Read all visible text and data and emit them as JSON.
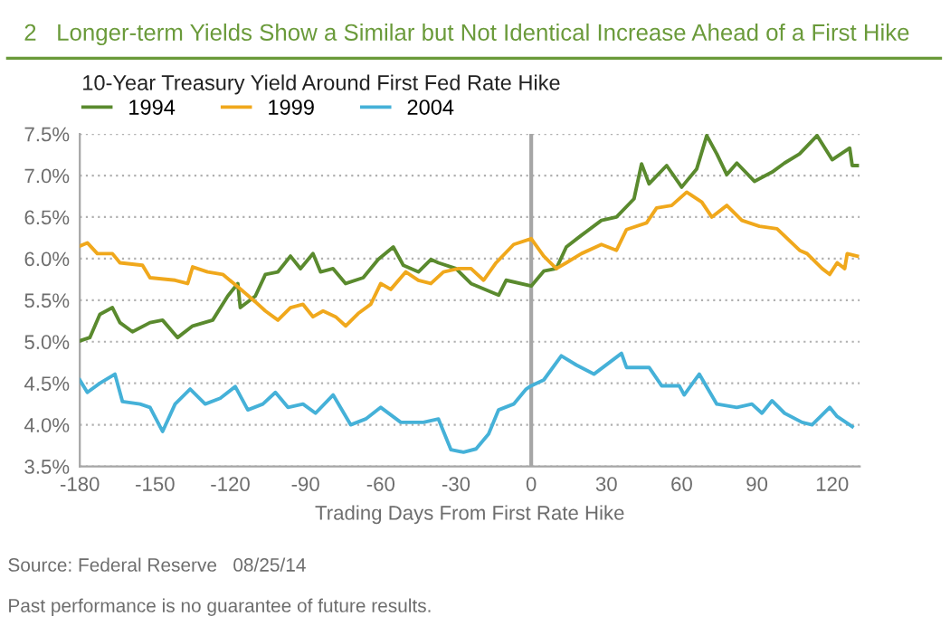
{
  "chart_data": {
    "type": "line",
    "title": "2   Longer-term Yields Show a Similar but Not Identical Increase Ahead of a First Hike",
    "subtitle": "10-Year Treasury Yield Around First Fed Rate Hike",
    "xlabel": "Trading Days From First Rate Hike",
    "annotations": [
      "Source: Federal Reserve   08/25/14",
      "Past performance is no guarantee of future results."
    ],
    "series": [
      {
        "name": "1994",
        "color": "#5a8a2e",
        "x": [
          -180,
          -176,
          -172,
          -167,
          -164,
          -159,
          -152,
          -147,
          -141,
          -135,
          -127,
          -121,
          -117,
          -116,
          -110,
          -106,
          -101,
          -96,
          -92,
          -87,
          -84,
          -79,
          -74,
          -67,
          -61,
          -55,
          -51,
          -45,
          -40,
          -37,
          -30,
          -24,
          -13,
          -10,
          0,
          5,
          10,
          14,
          20,
          28,
          34,
          41,
          44,
          47,
          54,
          60,
          66,
          70,
          74,
          78,
          82,
          89,
          96,
          101,
          107,
          114,
          120,
          127,
          128,
          130
        ],
        "values": [
          5.01,
          5.05,
          5.33,
          5.41,
          5.23,
          5.12,
          5.23,
          5.26,
          5.05,
          5.19,
          5.26,
          5.55,
          5.7,
          5.41,
          5.55,
          5.81,
          5.84,
          6.03,
          5.88,
          6.06,
          5.84,
          5.88,
          5.7,
          5.77,
          5.99,
          6.14,
          5.92,
          5.84,
          5.99,
          5.95,
          5.88,
          5.7,
          5.56,
          5.74,
          5.67,
          5.85,
          5.88,
          6.14,
          6.28,
          6.46,
          6.5,
          6.72,
          7.14,
          6.9,
          7.12,
          6.86,
          7.08,
          7.48,
          7.26,
          7.01,
          7.15,
          6.93,
          7.04,
          7.15,
          7.26,
          7.48,
          7.19,
          7.33,
          7.12,
          7.12
        ]
      },
      {
        "name": "1999",
        "color": "#f0a81c",
        "x": [
          -180,
          -177,
          -173,
          -167,
          -164,
          -155,
          -152,
          -142,
          -137,
          -135,
          -129,
          -123,
          -117,
          -110,
          -106,
          -101,
          -96,
          -91,
          -87,
          -83,
          -78,
          -74,
          -69,
          -64,
          -60,
          -56,
          -50,
          -45,
          -40,
          -35,
          -29,
          -24,
          -19,
          -14,
          -7,
          0,
          5,
          10,
          14,
          20,
          28,
          34,
          38,
          46,
          50,
          56,
          62,
          68,
          72,
          78,
          84,
          91,
          98,
          107,
          110,
          116,
          119,
          122,
          125,
          126,
          130
        ],
        "values": [
          6.15,
          6.19,
          6.06,
          6.06,
          5.95,
          5.92,
          5.77,
          5.74,
          5.7,
          5.9,
          5.84,
          5.81,
          5.66,
          5.48,
          5.37,
          5.26,
          5.41,
          5.45,
          5.3,
          5.37,
          5.3,
          5.19,
          5.34,
          5.45,
          5.7,
          5.63,
          5.84,
          5.74,
          5.7,
          5.84,
          5.88,
          5.88,
          5.74,
          5.95,
          6.17,
          6.24,
          6.03,
          5.88,
          5.95,
          6.06,
          6.17,
          6.1,
          6.35,
          6.43,
          6.61,
          6.64,
          6.8,
          6.68,
          6.5,
          6.64,
          6.46,
          6.39,
          6.36,
          6.1,
          6.06,
          5.88,
          5.81,
          5.95,
          5.88,
          6.06,
          6.03
        ]
      },
      {
        "name": "2004",
        "color": "#45b1d8",
        "x": [
          -180,
          -177,
          -172,
          -166,
          -163,
          -156,
          -152,
          -147,
          -142,
          -136,
          -130,
          -124,
          -118,
          -113,
          -107,
          -102,
          -97,
          -91,
          -86,
          -79,
          -72,
          -66,
          -60,
          -52,
          -43,
          -37,
          -32,
          -27,
          -22,
          -17,
          -13,
          -7,
          -2,
          0,
          5,
          12,
          18,
          25,
          36,
          38,
          47,
          52,
          59,
          61,
          67,
          74,
          82,
          88,
          92,
          96,
          101,
          108,
          112,
          119,
          122,
          128
        ],
        "values": [
          4.54,
          4.39,
          4.5,
          4.61,
          4.28,
          4.25,
          4.21,
          3.92,
          4.25,
          4.43,
          4.25,
          4.32,
          4.46,
          4.18,
          4.25,
          4.39,
          4.21,
          4.25,
          4.14,
          4.36,
          4.0,
          4.07,
          4.21,
          4.03,
          4.03,
          4.07,
          3.7,
          3.67,
          3.71,
          3.89,
          4.18,
          4.25,
          4.43,
          4.47,
          4.54,
          4.83,
          4.72,
          4.61,
          4.86,
          4.69,
          4.69,
          4.47,
          4.47,
          4.36,
          4.61,
          4.25,
          4.21,
          4.25,
          4.14,
          4.29,
          4.14,
          4.03,
          4.0,
          4.21,
          4.1,
          3.98
        ]
      }
    ],
    "xlim": [
      -180,
      131
    ],
    "xticks": [
      -180,
      -150,
      -120,
      -90,
      -60,
      -30,
      0,
      30,
      60,
      90,
      120
    ],
    "ylim": [
      3.5,
      7.5
    ],
    "yticks": [
      {
        "value": 3.5,
        "label": "3.5%"
      },
      {
        "value": 4.0,
        "label": "4.0%"
      },
      {
        "value": 4.5,
        "label": "4.5%"
      },
      {
        "value": 5.0,
        "label": "5.0%"
      },
      {
        "value": 5.5,
        "label": "5.5%"
      },
      {
        "value": 6.0,
        "label": "6.0%"
      },
      {
        "value": 6.5,
        "label": "6.5%"
      },
      {
        "value": 7.0,
        "label": "7.0%"
      },
      {
        "value": 7.5,
        "label": "7.5%"
      }
    ],
    "ref_lines": [
      {
        "axis": "x",
        "value": 0,
        "color": "#a6a6a6"
      }
    ],
    "grid": "y",
    "legend": "top left",
    "line_style": "solid",
    "marker": "none"
  }
}
